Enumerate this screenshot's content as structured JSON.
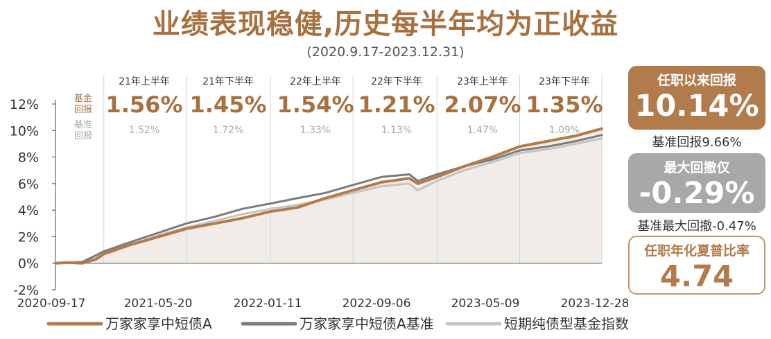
{
  "title": "业绩表现稳健,历史每半年均为正收益",
  "subtitle": "(2020.9.17-2023.12.31)",
  "row_labels": {
    "fund_line1": "基金",
    "fund_line2": "回报",
    "bench_line1": "基准",
    "bench_line2": "回报"
  },
  "metrics": {
    "tenure_return_label": "任职以来回报",
    "tenure_return_value": "10.14%",
    "benchmark_return_note": "基准回报9.66%",
    "max_drawdown_label": "最大回撤仅",
    "max_drawdown_value": "-0.29%",
    "benchmark_drawdown_note": "基准最大回撤-0.47%",
    "sharpe_label": "任职年化夏普比率",
    "sharpe_value": "4.74"
  },
  "colors": {
    "fund": "#b27b4b",
    "benchmark": "#7b7b7b",
    "index": "#c4c4c4",
    "area": "#f1ece7",
    "accent": "#a8703f"
  },
  "chart_data": {
    "type": "line",
    "title": "",
    "xlabel": "",
    "ylabel": "",
    "ylim": [
      -2,
      12
    ],
    "yticks": [
      "12%",
      "10%",
      "8%",
      "6%",
      "4%",
      "2%",
      "0%",
      "-2%"
    ],
    "xtick_labels": [
      "2020-09-17",
      "2021-05-20",
      "2022-01-11",
      "2022-09-06",
      "2023-05-09",
      "2023-12-28"
    ],
    "grid": false,
    "legend_position": "bottom",
    "periods": [
      {
        "label": "21年上半年",
        "fund": "1.56%",
        "benchmark": "1.52%"
      },
      {
        "label": "21年下半年",
        "fund": "1.45%",
        "benchmark": "1.72%"
      },
      {
        "label": "22年上半年",
        "fund": "1.54%",
        "benchmark": "1.33%"
      },
      {
        "label": "22年下半年",
        "fund": "1.21%",
        "benchmark": "1.13%"
      },
      {
        "label": "23年上半年",
        "fund": "2.07%",
        "benchmark": "1.47%"
      },
      {
        "label": "23年下半年",
        "fund": "1.35%",
        "benchmark": "1.09%"
      }
    ],
    "period_boundaries": [
      "2021-01-01",
      "2021-07-01",
      "2022-01-01",
      "2022-07-01",
      "2023-01-01",
      "2023-07-01",
      "2023-12-31"
    ],
    "x": [
      "2020-09-17",
      "2020-10-15",
      "2020-11-15",
      "2020-12-15",
      "2021-01-01",
      "2021-03-01",
      "2021-05-01",
      "2021-07-01",
      "2021-09-01",
      "2021-11-01",
      "2022-01-01",
      "2022-03-01",
      "2022-05-01",
      "2022-07-01",
      "2022-09-01",
      "2022-11-01",
      "2022-11-20",
      "2023-01-01",
      "2023-03-01",
      "2023-05-01",
      "2023-07-01",
      "2023-09-01",
      "2023-11-01",
      "2023-12-28"
    ],
    "series": [
      {
        "name": "万家家享中短债A",
        "values": [
          0.0,
          0.05,
          0.0,
          0.3,
          0.7,
          1.4,
          2.0,
          2.6,
          3.0,
          3.4,
          3.9,
          4.2,
          4.9,
          5.5,
          6.1,
          6.4,
          6.0,
          6.5,
          7.3,
          8.0,
          8.8,
          9.2,
          9.6,
          10.14
        ]
      },
      {
        "name": "万家家享中短债A基准",
        "values": [
          0.0,
          0.05,
          0.1,
          0.6,
          0.9,
          1.6,
          2.3,
          3.0,
          3.5,
          4.1,
          4.5,
          4.9,
          5.3,
          5.9,
          6.5,
          6.7,
          6.2,
          6.7,
          7.3,
          7.8,
          8.5,
          8.8,
          9.2,
          9.66
        ]
      },
      {
        "name": "短期纯债型基金指数",
        "values": [
          0.0,
          0.0,
          0.05,
          0.4,
          0.8,
          1.4,
          2.1,
          2.7,
          3.2,
          3.7,
          4.1,
          4.4,
          4.8,
          5.3,
          5.8,
          6.0,
          5.5,
          6.2,
          7.0,
          7.6,
          8.3,
          8.6,
          9.0,
          9.4
        ]
      }
    ]
  }
}
